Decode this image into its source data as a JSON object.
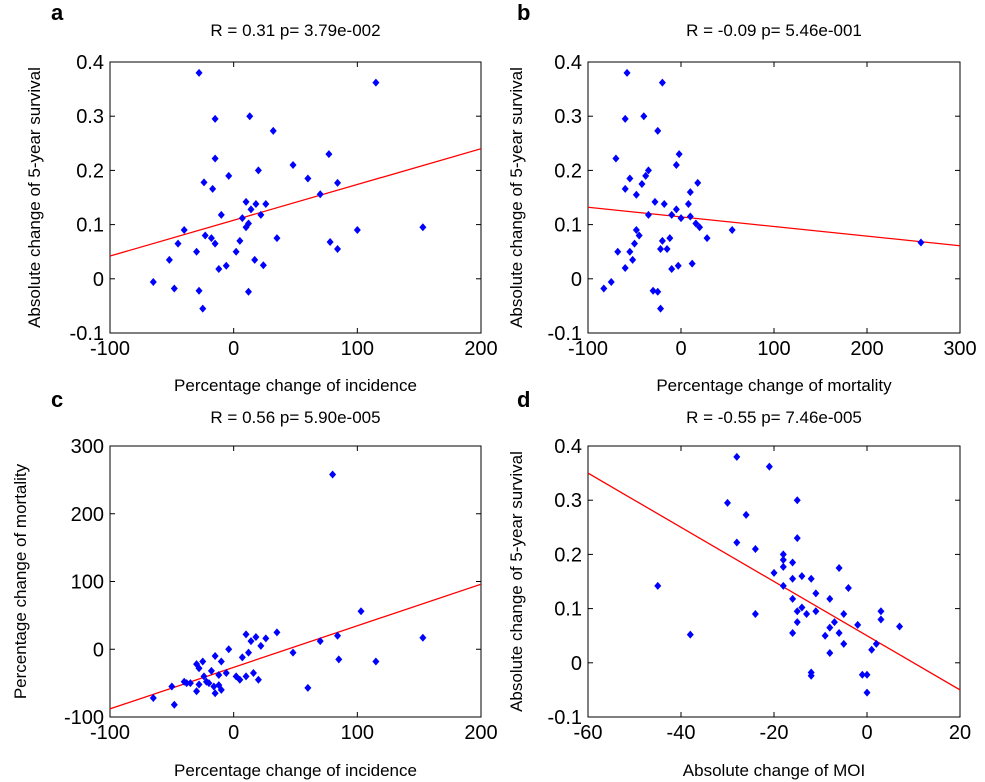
{
  "colors": {
    "points": "#0000ff",
    "fit": "#ff0000",
    "axes": "#000000"
  },
  "chart_data": [
    {
      "type": "scatter",
      "panel": "a",
      "title": "R =  0.31   p= 3.79e-002",
      "xlabel": "Percentage change of incidence",
      "ylabel": "Absolute change of 5-year survival",
      "xlim": [
        -100,
        200
      ],
      "ylim": [
        -0.1,
        0.4
      ],
      "xticks": [
        -100,
        0,
        100,
        200
      ],
      "yticks": [
        -0.1,
        0,
        0.1,
        0.2,
        0.3,
        0.4
      ],
      "xtick_labels": [
        "-100",
        "0",
        "100",
        "200"
      ],
      "ytick_labels": [
        "-0.1",
        "0",
        "0.1",
        "0.2",
        "0.3",
        "0.4"
      ],
      "grid": false,
      "fit_line": [
        [
          -100,
          0.042
        ],
        [
          200,
          0.24
        ]
      ],
      "points": [
        [
          -28,
          0.38
        ],
        [
          115,
          0.362
        ],
        [
          13,
          0.3
        ],
        [
          -15,
          0.295
        ],
        [
          32,
          0.273
        ],
        [
          -15,
          0.222
        ],
        [
          77,
          0.23
        ],
        [
          48,
          0.21
        ],
        [
          -24,
          0.178
        ],
        [
          -17,
          0.166
        ],
        [
          20,
          0.2
        ],
        [
          60,
          0.185
        ],
        [
          70,
          0.156
        ],
        [
          84,
          0.177
        ],
        [
          -4,
          0.19
        ],
        [
          10,
          0.142
        ],
        [
          18,
          0.138
        ],
        [
          26,
          0.138
        ],
        [
          14,
          0.128
        ],
        [
          22,
          0.118
        ],
        [
          -10,
          0.118
        ],
        [
          7,
          0.112
        ],
        [
          12,
          0.102
        ],
        [
          10,
          0.095
        ],
        [
          100,
          0.09
        ],
        [
          153,
          0.095
        ],
        [
          -40,
          0.09
        ],
        [
          -45,
          0.065
        ],
        [
          -23,
          0.08
        ],
        [
          -18,
          0.075
        ],
        [
          -15,
          0.065
        ],
        [
          35,
          0.075
        ],
        [
          5,
          0.07
        ],
        [
          78,
          0.068
        ],
        [
          84,
          0.055
        ],
        [
          2,
          0.05
        ],
        [
          -30,
          0.05
        ],
        [
          -52,
          0.035
        ],
        [
          -12,
          0.018
        ],
        [
          -6,
          0.024
        ],
        [
          24,
          0.025
        ],
        [
          17,
          0.035
        ],
        [
          -65,
          -0.006
        ],
        [
          -48,
          -0.018
        ],
        [
          -28,
          -0.022
        ],
        [
          12,
          -0.024
        ],
        [
          -25,
          -0.055
        ]
      ]
    },
    {
      "type": "scatter",
      "panel": "b",
      "title": "R = -0.09   p= 5.46e-001",
      "xlabel": "Percentage change of mortality",
      "ylabel": "Absolute change of 5-year survival",
      "xlim": [
        -100,
        300
      ],
      "ylim": [
        -0.1,
        0.4
      ],
      "xticks": [
        -100,
        0,
        100,
        200,
        300
      ],
      "yticks": [
        -0.1,
        0,
        0.1,
        0.2,
        0.3,
        0.4
      ],
      "xtick_labels": [
        "-100",
        "0",
        "100",
        "200",
        "300"
      ],
      "ytick_labels": [
        "-0.1",
        "0",
        "0.1",
        "0.2",
        "0.3",
        "0.4"
      ],
      "grid": false,
      "fit_line": [
        [
          -100,
          0.132
        ],
        [
          300,
          0.061
        ]
      ],
      "points": [
        [
          -58,
          0.38
        ],
        [
          -20,
          0.362
        ],
        [
          -40,
          0.3
        ],
        [
          -60,
          0.295
        ],
        [
          -25,
          0.273
        ],
        [
          -70,
          0.222
        ],
        [
          -2,
          0.23
        ],
        [
          -5,
          0.21
        ],
        [
          -35,
          0.2
        ],
        [
          -55,
          0.185
        ],
        [
          -38,
          0.19
        ],
        [
          -42,
          0.175
        ],
        [
          -48,
          0.155
        ],
        [
          18,
          0.177
        ],
        [
          -60,
          0.166
        ],
        [
          10,
          0.16
        ],
        [
          -28,
          0.142
        ],
        [
          -18,
          0.138
        ],
        [
          8,
          0.138
        ],
        [
          -5,
          0.128
        ],
        [
          -35,
          0.118
        ],
        [
          0,
          0.112
        ],
        [
          10,
          0.115
        ],
        [
          16,
          0.102
        ],
        [
          20,
          0.095
        ],
        [
          -10,
          0.118
        ],
        [
          -48,
          0.09
        ],
        [
          -45,
          0.08
        ],
        [
          -20,
          0.07
        ],
        [
          -12,
          0.075
        ],
        [
          -50,
          0.065
        ],
        [
          -68,
          0.05
        ],
        [
          -55,
          0.05
        ],
        [
          -15,
          0.055
        ],
        [
          -22,
          0.055
        ],
        [
          28,
          0.075
        ],
        [
          55,
          0.09
        ],
        [
          -52,
          0.035
        ],
        [
          -60,
          0.02
        ],
        [
          -10,
          0.018
        ],
        [
          -3,
          0.024
        ],
        [
          12,
          0.028
        ],
        [
          -75,
          -0.006
        ],
        [
          -83,
          -0.018
        ],
        [
          -30,
          -0.022
        ],
        [
          -25,
          -0.024
        ],
        [
          -22,
          -0.055
        ],
        [
          258,
          0.067
        ]
      ]
    },
    {
      "type": "scatter",
      "panel": "c",
      "title": "R =  0.56   p= 5.90e-005",
      "xlabel": "Percentage change of incidence",
      "ylabel": "Percentage change of mortality",
      "xlim": [
        -100,
        200
      ],
      "ylim": [
        -100,
        300
      ],
      "xticks": [
        -100,
        0,
        100,
        200
      ],
      "yticks": [
        -100,
        0,
        100,
        200,
        300
      ],
      "xtick_labels": [
        "-100",
        "0",
        "100",
        "200"
      ],
      "ytick_labels": [
        "-100",
        "0",
        "100",
        "200",
        "300"
      ],
      "grid": false,
      "fit_line": [
        [
          -100,
          -88
        ],
        [
          200,
          96
        ]
      ],
      "points": [
        [
          80,
          258
        ],
        [
          103,
          56
        ],
        [
          153,
          17
        ],
        [
          115,
          -18
        ],
        [
          84,
          20
        ],
        [
          70,
          12
        ],
        [
          60,
          -57
        ],
        [
          85,
          -15
        ],
        [
          48,
          -5
        ],
        [
          35,
          25
        ],
        [
          26,
          16
        ],
        [
          18,
          18
        ],
        [
          14,
          12
        ],
        [
          10,
          22
        ],
        [
          22,
          5
        ],
        [
          -4,
          0
        ],
        [
          12,
          -5
        ],
        [
          7,
          -12
        ],
        [
          -10,
          -18
        ],
        [
          -15,
          -10
        ],
        [
          -25,
          -18
        ],
        [
          -28,
          -28
        ],
        [
          -30,
          -22
        ],
        [
          -18,
          -32
        ],
        [
          -24,
          -40
        ],
        [
          2,
          -40
        ],
        [
          10,
          -40
        ],
        [
          -12,
          -38
        ],
        [
          -6,
          -35
        ],
        [
          16,
          -35
        ],
        [
          20,
          -45
        ],
        [
          -20,
          -50
        ],
        [
          -16,
          -55
        ],
        [
          -12,
          -53
        ],
        [
          -22,
          -48
        ],
        [
          -28,
          -52
        ],
        [
          -30,
          -62
        ],
        [
          -35,
          -50
        ],
        [
          -40,
          -48
        ],
        [
          -15,
          -65
        ],
        [
          -10,
          -60
        ],
        [
          5,
          -45
        ],
        [
          -50,
          -55
        ],
        [
          -65,
          -72
        ],
        [
          -48,
          -82
        ],
        [
          -38,
          -50
        ]
      ]
    },
    {
      "type": "scatter",
      "panel": "d",
      "title": "R = -0.55   p= 7.46e-005",
      "xlabel": "Absolute change of MOI",
      "ylabel": "Absolute change of 5-year survival",
      "xlim": [
        -60,
        20
      ],
      "ylim": [
        -0.1,
        0.4
      ],
      "xticks": [
        -60,
        -40,
        -20,
        0,
        20
      ],
      "yticks": [
        -0.1,
        0,
        0.1,
        0.2,
        0.3,
        0.4
      ],
      "xtick_labels": [
        "-60",
        "-40",
        "-20",
        "0",
        "20"
      ],
      "ytick_labels": [
        "-0.1",
        "0",
        "0.1",
        "0.2",
        "0.3",
        "0.4"
      ],
      "grid": false,
      "fit_line": [
        [
          -60,
          0.35
        ],
        [
          20,
          -0.05
        ]
      ],
      "points": [
        [
          -28,
          0.38
        ],
        [
          -21,
          0.362
        ],
        [
          -30,
          0.295
        ],
        [
          -15,
          0.3
        ],
        [
          -26,
          0.273
        ],
        [
          -15,
          0.23
        ],
        [
          -28,
          0.222
        ],
        [
          -24,
          0.21
        ],
        [
          -18,
          0.2
        ],
        [
          -18,
          0.19
        ],
        [
          -16,
          0.185
        ],
        [
          -18,
          0.177
        ],
        [
          -20,
          0.166
        ],
        [
          -14,
          0.16
        ],
        [
          -6,
          0.175
        ],
        [
          -12,
          0.155
        ],
        [
          -16,
          0.155
        ],
        [
          -18,
          0.142
        ],
        [
          -4,
          0.138
        ],
        [
          -11,
          0.128
        ],
        [
          -16,
          0.118
        ],
        [
          -8,
          0.118
        ],
        [
          -14,
          0.102
        ],
        [
          -11,
          0.095
        ],
        [
          -5,
          0.09
        ],
        [
          -15,
          0.095
        ],
        [
          -13,
          0.09
        ],
        [
          -15,
          0.075
        ],
        [
          -7,
          0.075
        ],
        [
          -2,
          0.07
        ],
        [
          3,
          0.095
        ],
        [
          3,
          0.08
        ],
        [
          7,
          0.067
        ],
        [
          -6,
          0.055
        ],
        [
          -8,
          0.065
        ],
        [
          -16,
          0.055
        ],
        [
          -9,
          0.05
        ],
        [
          -5,
          0.035
        ],
        [
          -8,
          0.018
        ],
        [
          1,
          0.024
        ],
        [
          2,
          0.035
        ],
        [
          -12,
          -0.018
        ],
        [
          -12,
          -0.024
        ],
        [
          0,
          -0.022
        ],
        [
          -1,
          -0.022
        ],
        [
          0,
          -0.055
        ],
        [
          -45,
          0.142
        ],
        [
          -38,
          0.052
        ],
        [
          -24,
          0.09
        ]
      ]
    }
  ]
}
